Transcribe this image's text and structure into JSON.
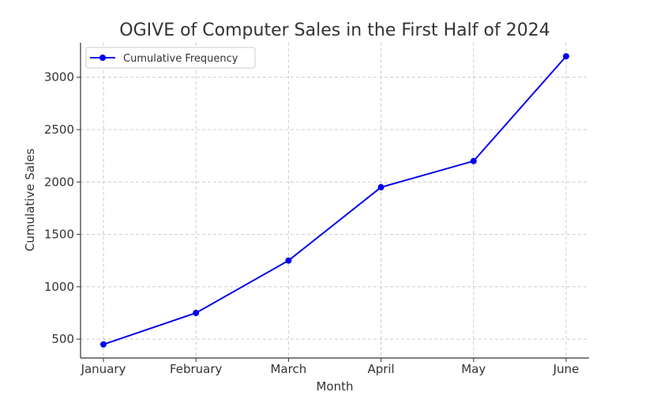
{
  "chart_data": {
    "type": "line",
    "title": "OGIVE of Computer Sales in the First Half of 2024",
    "xlabel": "Month",
    "ylabel": "Cumulative Sales",
    "categories": [
      "January",
      "February",
      "March",
      "April",
      "May",
      "June"
    ],
    "series": [
      {
        "name": "Cumulative Frequency",
        "values": [
          450,
          750,
          1250,
          1950,
          2200,
          3200
        ],
        "color": "#0000ee"
      }
    ],
    "yticks": [
      500,
      1000,
      1500,
      2000,
      2500,
      3000
    ],
    "ylim": [
      320,
      3330
    ],
    "grid": true,
    "legend_position": "top-left"
  }
}
